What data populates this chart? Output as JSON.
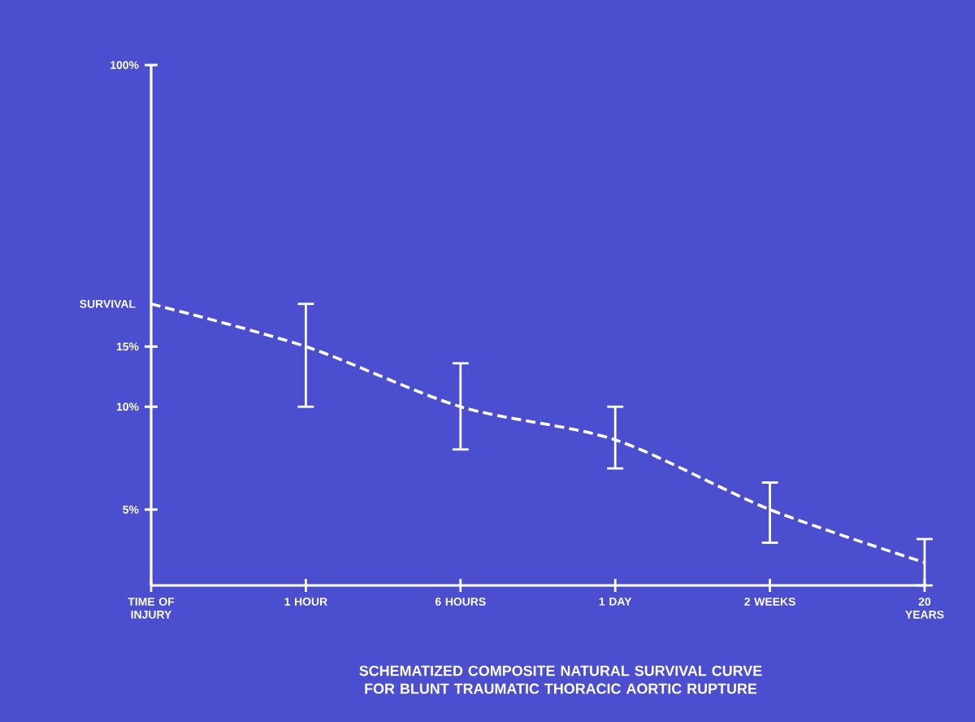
{
  "chart_data": {
    "type": "line",
    "title": "SCHEMATIZED COMPOSITE NATURAL SURVIVAL CURVE FOR BLUNT TRAUMATIC THORACIC AORTIC RUPTURE",
    "ylabel": "SURVIVAL",
    "categories": [
      "TIME OF INJURY",
      "1 HOUR",
      "6 HOURS",
      "1 DAY",
      "2 WEEKS",
      "20 YEARS"
    ],
    "series": [
      {
        "color": "#ffffff",
        "values": [
          20,
          15,
          10,
          8,
          5,
          3.5
        ],
        "errors": [
          null,
          [
            10,
            20
          ],
          [
            7.5,
            13.4
          ],
          [
            6.6,
            10
          ],
          [
            4,
            6
          ],
          [
            3,
            4.1
          ]
        ]
      }
    ],
    "log": "y",
    "ylim": [
      3,
      100
    ],
    "yticks": [
      {
        "value": 5,
        "label": "5%"
      },
      {
        "value": 10,
        "label": "10%"
      },
      {
        "value": 15,
        "label": "15%"
      },
      {
        "value": 100,
        "label": "100%"
      }
    ],
    "grid": false,
    "marker": "none",
    "line_style": "dashed"
  }
}
